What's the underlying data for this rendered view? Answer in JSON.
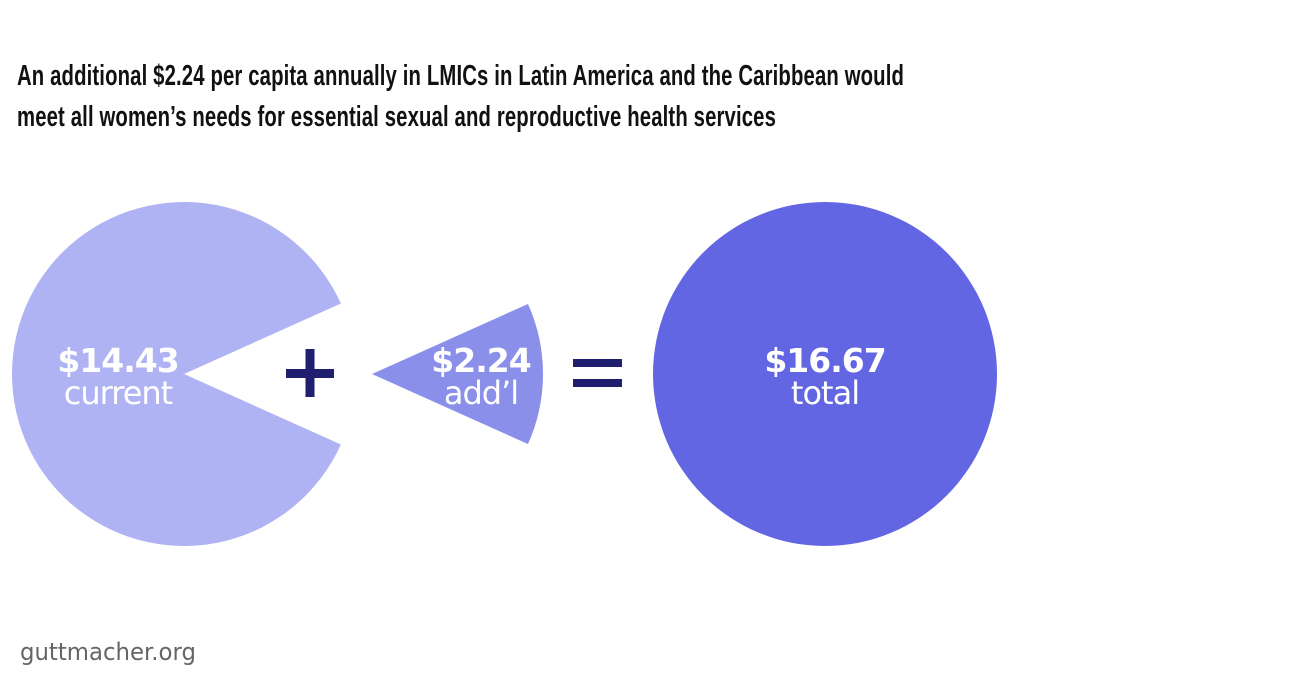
{
  "title_lines": [
    "An additional $2.24 per capita annually in LMICs in Latin America and the Caribbean would",
    "meet all women’s needs for essential sexual and reproductive health services"
  ],
  "footer": "guttmacher.org",
  "chart_data": {
    "type": "pie",
    "title": "An additional $2.24 per capita annually in LMICs in Latin America and the Caribbean would meet all women’s needs for essential sexual and reproductive health services",
    "slices": [
      {
        "value_label": "$14.43",
        "label": "current",
        "value": 14.43,
        "color": "#b0b3f3"
      },
      {
        "value_label": "$2.24",
        "label": "add’l",
        "value": 2.24,
        "color": "#8a8fea"
      }
    ],
    "total": {
      "value_label": "$16.67",
      "label": "total",
      "value": 16.67,
      "color": "#6366e3"
    },
    "operators": [
      "+",
      "="
    ],
    "operator_color": "#201e6e"
  }
}
